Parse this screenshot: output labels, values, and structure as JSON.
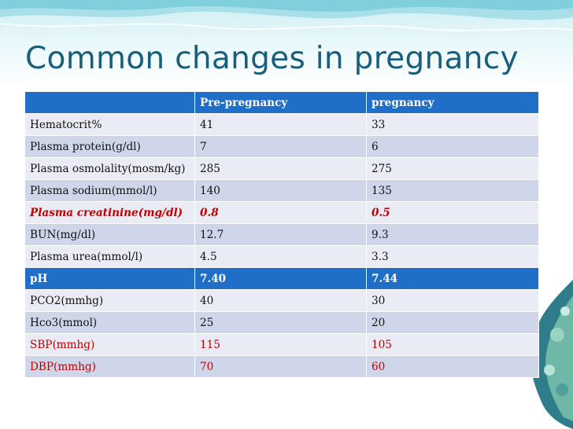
{
  "slide": {
    "title": "Common changes in pregnancy"
  },
  "table": {
    "columns": [
      "",
      "Pre-pregnancy",
      "pregnancy"
    ],
    "rows": [
      {
        "parameter": "Hematocrit%",
        "pre": "41",
        "preg": "33"
      },
      {
        "parameter": "Plasma protein(g/dl)",
        "pre": "7",
        "preg": "6"
      },
      {
        "parameter": "Plasma osmolality(mosm/kg)",
        "pre": "285",
        "preg": "275"
      },
      {
        "parameter": "Plasma sodium(mmol/l)",
        "pre": "140",
        "preg": "135"
      },
      {
        "parameter": "Plasma creatinine(mg/dl)",
        "pre": "0.8",
        "preg": "0.5"
      },
      {
        "parameter": "BUN(mg/dl)",
        "pre": "12.7",
        "preg": "9.3"
      },
      {
        "parameter": "Plasma urea(mmol/l)",
        "pre": "4.5",
        "preg": "3.3"
      },
      {
        "parameter": "pH",
        "pre": "7.40",
        "preg": "7.44"
      },
      {
        "parameter": "PCO2(mmhg)",
        "pre": "40",
        "preg": "30"
      },
      {
        "parameter": "Hco3(mmol)",
        "pre": "25",
        "preg": "20"
      },
      {
        "parameter": "SBP(mmhg)",
        "pre": "115",
        "preg": "105"
      },
      {
        "parameter": "DBP(mmhg)",
        "pre": "70",
        "preg": "60"
      }
    ]
  },
  "colors": {
    "title": "#1a5e7d",
    "header_fill": "#1f6ec8",
    "row_light": "#e9ebf5",
    "row_dark": "#d0d6ea",
    "highlight_text": "#c00000"
  }
}
